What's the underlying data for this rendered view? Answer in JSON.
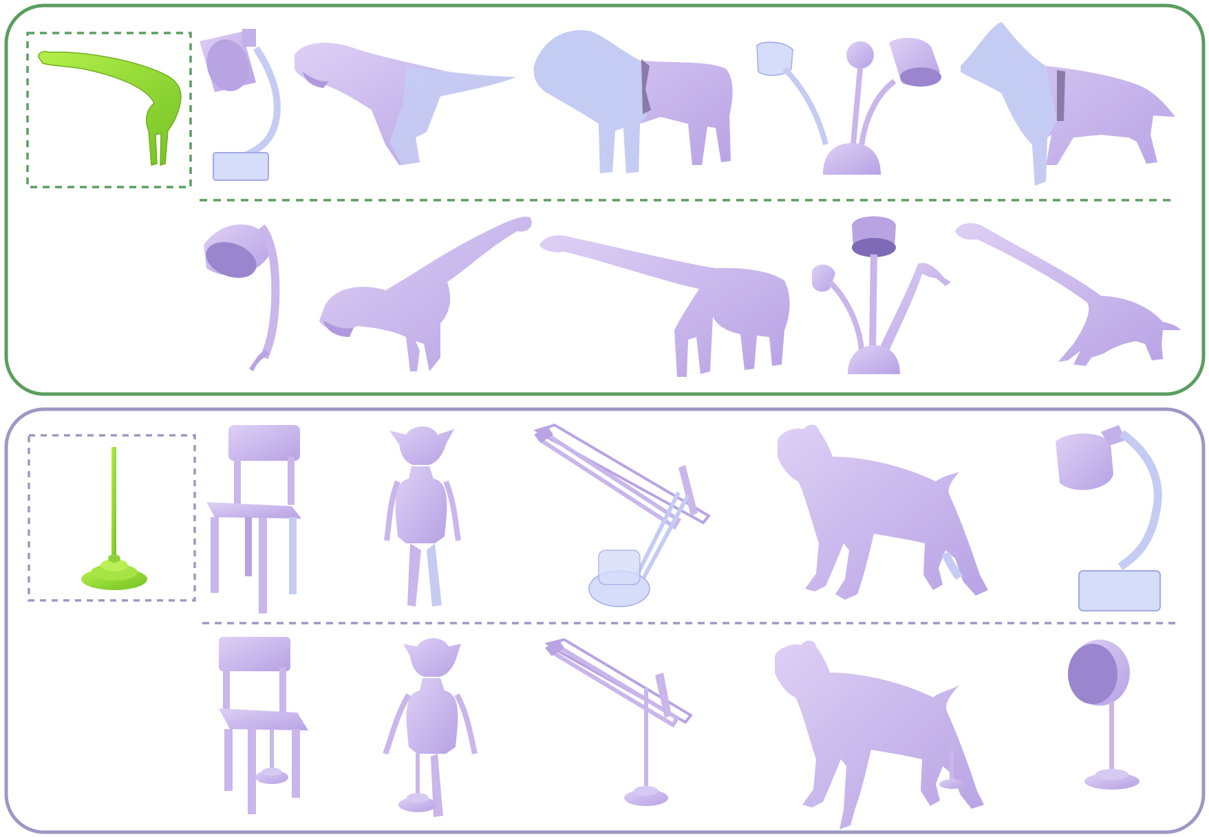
{
  "figure": {
    "colors": {
      "top_frame": "#5a9e5f",
      "bottom_frame": "#9c98c4",
      "source_part": "#8fd33c",
      "shape": "#c9b6ea",
      "shape_shadow": "#a893d6",
      "ghost": "#c5ccf3",
      "ghost_edge": "#9fa9e3"
    },
    "top_panel": {
      "source_part": "giraffe-neck",
      "targets_before": [
        "desk-lamp",
        "t-rex",
        "donkey",
        "three-head-lamp",
        "dog"
      ],
      "targets_after": [
        "desk-lamp-with-giraffe-neck",
        "t-rex-with-giraffe-neck",
        "donkey-with-giraffe-neck",
        "three-head-lamp-with-giraffe-neck",
        "dog-with-giraffe-neck"
      ]
    },
    "bottom_panel": {
      "source_part": "lamp-stand",
      "targets_before": [
        "chair",
        "dobby",
        "architect-lamp",
        "boxer-dog",
        "desk-lamp"
      ],
      "targets_after": [
        "chair-with-lamp-stand",
        "dobby-with-lamp-stand",
        "architect-lamp-with-lamp-stand",
        "boxer-dog-with-lamp-stand",
        "desk-lamp-with-lamp-stand"
      ]
    }
  }
}
